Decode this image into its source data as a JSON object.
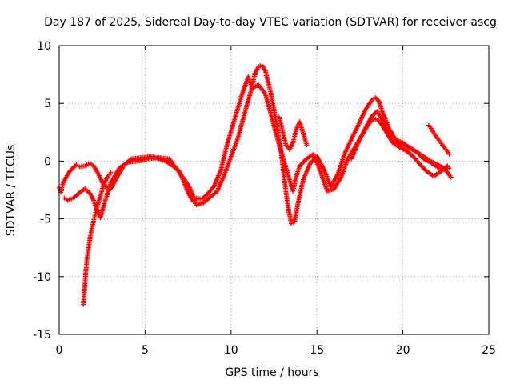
{
  "chart_data": {
    "type": "scatter",
    "title": "Day 187 of 2025, Sidereal Day-to-day VTEC variation (SDTVAR) for receiver ascg",
    "xlabel": "GPS time / hours",
    "ylabel": "SDTVAR / TECUs",
    "xlim": [
      0,
      25
    ],
    "ylim": [
      -15,
      10
    ],
    "xticks": [
      0,
      5,
      10,
      15,
      20,
      25
    ],
    "yticks": [
      -15,
      -10,
      -5,
      0,
      5,
      10
    ],
    "xtick_labels": [
      "0",
      "5",
      "10",
      "15",
      "20",
      "25"
    ],
    "ytick_labels": [
      "-15",
      "-10",
      "-5",
      "0",
      "5",
      "10"
    ],
    "grid": true,
    "marker": "+",
    "color": "#ff0000",
    "series": [
      {
        "name": "trace-1",
        "x": [
          0.0,
          0.1,
          0.2,
          0.4,
          0.6,
          0.8,
          1.0,
          1.2,
          1.5,
          1.8,
          2.0,
          2.2,
          2.6,
          3.0,
          3.4,
          3.8,
          4.2,
          4.8,
          5.4,
          5.8,
          6.2,
          6.6,
          7.0,
          7.2,
          7.4,
          7.6,
          7.8,
          8.0,
          8.3,
          8.6,
          9.0,
          9.4,
          9.8,
          10.2,
          10.6,
          11.0,
          11.2,
          11.4,
          11.6,
          11.8,
          12.0,
          12.3,
          12.6,
          12.9,
          13.1,
          13.3,
          13.5,
          13.7,
          13.9,
          14.2,
          14.6,
          15.0,
          15.4,
          15.8,
          16.2,
          16.6,
          17.0,
          17.4,
          17.8,
          18.2,
          18.4,
          18.6,
          18.8,
          19.2,
          19.6,
          20.0,
          20.4,
          20.8,
          21.2,
          21.6,
          22.0,
          22.4,
          22.7
        ],
        "y": [
          -2.3,
          -2.7,
          -2.0,
          -1.4,
          -0.9,
          -0.6,
          -0.3,
          -0.5,
          -0.4,
          -0.2,
          -0.4,
          -0.9,
          -2.1,
          -2.4,
          -1.3,
          -0.3,
          0.2,
          0.3,
          0.4,
          0.2,
          0.0,
          -0.4,
          -0.9,
          -1.6,
          -2.4,
          -3.0,
          -3.5,
          -3.2,
          -3.3,
          -2.9,
          -2.2,
          -0.8,
          1.6,
          3.6,
          5.6,
          7.3,
          6.4,
          7.6,
          8.2,
          8.3,
          7.8,
          6.0,
          3.6,
          1.0,
          -1.6,
          -3.8,
          -5.4,
          -5.2,
          -3.6,
          -1.6,
          -0.2,
          0.4,
          -0.7,
          -2.2,
          -1.2,
          0.6,
          1.9,
          3.1,
          4.4,
          5.3,
          5.5,
          5.2,
          4.3,
          2.8,
          1.8,
          1.6,
          1.1,
          0.8,
          0.2,
          -0.1,
          -0.5,
          -0.7,
          -0.6
        ]
      },
      {
        "name": "trace-2",
        "x": [
          0.3,
          0.5,
          0.8,
          1.0,
          1.2,
          1.5,
          1.8,
          2.0,
          2.2,
          2.4,
          2.6,
          3.0,
          3.5,
          4.0,
          4.6,
          5.2,
          5.8,
          6.4,
          6.8,
          7.2,
          7.6,
          8.0,
          8.4,
          8.8,
          9.2,
          9.6,
          10.0,
          10.4,
          10.8,
          11.2,
          11.6,
          12.0,
          12.4,
          12.8,
          13.2,
          13.6,
          13.8,
          14.0,
          14.4,
          14.8,
          15.2,
          15.6,
          16.0,
          16.4,
          16.8,
          17.2,
          17.6,
          18.0,
          18.3,
          18.6,
          19.0,
          19.4,
          19.8,
          20.2,
          20.6,
          21.0,
          21.4,
          21.8,
          22.2,
          22.6
        ],
        "y": [
          -3.2,
          -3.4,
          -3.2,
          -3.0,
          -2.7,
          -2.4,
          -2.8,
          -3.4,
          -4.2,
          -4.9,
          -3.8,
          -1.9,
          -0.6,
          -0.1,
          0.0,
          0.2,
          0.3,
          0.2,
          -0.6,
          -1.4,
          -2.3,
          -3.8,
          -3.6,
          -3.1,
          -2.6,
          -1.2,
          0.4,
          2.0,
          4.2,
          6.3,
          6.6,
          5.8,
          3.6,
          1.4,
          -0.6,
          -2.6,
          -1.3,
          -0.4,
          0.2,
          0.6,
          -0.9,
          -2.6,
          -2.4,
          -1.4,
          0.2,
          1.2,
          2.2,
          3.2,
          3.7,
          3.5,
          2.6,
          1.6,
          1.2,
          0.9,
          0.4,
          -0.3,
          -0.9,
          -1.3,
          -0.9,
          -0.4
        ]
      },
      {
        "name": "trace-3",
        "x": [
          1.4,
          1.45,
          1.5,
          1.55,
          1.6,
          1.7,
          1.8,
          1.9,
          2.0,
          2.1,
          2.2,
          2.4,
          2.6,
          2.8,
          3.0
        ],
        "y": [
          -12.4,
          -11.6,
          -10.6,
          -9.6,
          -8.7,
          -7.6,
          -6.6,
          -5.8,
          -5.2,
          -4.6,
          -4.0,
          -3.0,
          -2.0,
          -1.4,
          -1.0
        ]
      },
      {
        "name": "trace-4",
        "x": [
          12.8,
          13.0,
          13.2,
          13.4,
          13.6,
          13.8,
          14.0,
          14.2,
          14.4
        ],
        "y": [
          3.8,
          2.6,
          1.4,
          1.0,
          1.6,
          2.8,
          3.4,
          2.4,
          1.4
        ]
      },
      {
        "name": "trace-5",
        "x": [
          17.0,
          17.4,
          17.8,
          18.2,
          18.5,
          18.8,
          19.2,
          19.6,
          20.0,
          20.4,
          20.8,
          21.2,
          21.6,
          22.0,
          22.4,
          22.8
        ],
        "y": [
          0.2,
          1.6,
          2.8,
          3.9,
          4.3,
          3.6,
          2.2,
          1.6,
          1.4,
          1.2,
          0.8,
          0.4,
          0.0,
          -0.3,
          -0.6,
          -1.4
        ]
      },
      {
        "name": "trace-6",
        "x": [
          21.5,
          21.7,
          21.9,
          22.1,
          22.3,
          22.5,
          22.7
        ],
        "y": [
          3.1,
          2.7,
          2.2,
          1.8,
          1.4,
          1.0,
          0.6
        ]
      }
    ]
  }
}
